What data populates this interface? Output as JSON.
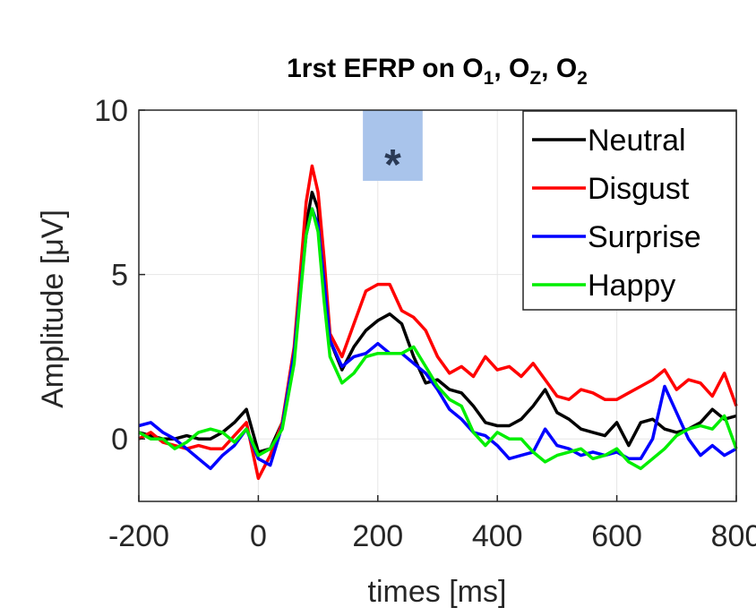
{
  "chart_data": {
    "type": "line",
    "title": [
      "1rst EFRP on O",
      "1",
      ", O",
      "Z",
      ", O",
      "2"
    ],
    "x_label": "times [ms]",
    "y_label": "Amplitude [μV]",
    "x": [
      -200,
      -180,
      -160,
      -140,
      -120,
      -100,
      -80,
      -60,
      -40,
      -20,
      0,
      20,
      40,
      60,
      70,
      80,
      90,
      100,
      110,
      120,
      140,
      160,
      180,
      200,
      220,
      240,
      260,
      280,
      300,
      320,
      340,
      360,
      380,
      400,
      420,
      440,
      460,
      480,
      500,
      520,
      540,
      560,
      580,
      600,
      620,
      640,
      660,
      680,
      700,
      720,
      740,
      760,
      780,
      800
    ],
    "series": [
      {
        "name": "Neutral",
        "color": "#000000",
        "values": [
          0.2,
          0.1,
          0,
          0,
          0.1,
          0,
          0,
          0.2,
          0.5,
          0.9,
          -0.4,
          -0.3,
          0.5,
          2.5,
          4.5,
          6.5,
          7.5,
          7,
          5,
          3,
          2.1,
          2.8,
          3.3,
          3.6,
          3.8,
          3.5,
          2.5,
          1.7,
          1.8,
          1.5,
          1.4,
          1.0,
          0.5,
          0.4,
          0.4,
          0.6,
          1.0,
          1.5,
          0.8,
          0.6,
          0.3,
          0.2,
          0.1,
          0.5,
          -0.2,
          0.5,
          0.6,
          0.3,
          0.2,
          0.3,
          0.5,
          0.9,
          0.6,
          0.7
        ]
      },
      {
        "name": "Disgust",
        "color": "#ff0000",
        "values": [
          0,
          0.2,
          -0.1,
          -0.2,
          -0.3,
          -0.2,
          -0.3,
          -0.3,
          0.1,
          0.5,
          -1.2,
          -0.5,
          0.5,
          2.8,
          5,
          7.2,
          8.3,
          7.5,
          5.5,
          3.2,
          2.5,
          3.5,
          4.5,
          4.7,
          4.7,
          3.9,
          3.7,
          3.3,
          2.5,
          2.0,
          2.2,
          1.9,
          2.5,
          2.1,
          2.2,
          1.9,
          2.3,
          1.8,
          1.3,
          1.2,
          1.5,
          1.4,
          1.2,
          1.2,
          1.4,
          1.6,
          1.8,
          2.1,
          1.5,
          1.8,
          1.7,
          1.3,
          2.0,
          1.0
        ]
      },
      {
        "name": "Surprise",
        "color": "#0000ff",
        "values": [
          0.4,
          0.5,
          0.2,
          0,
          -0.3,
          -0.6,
          -0.9,
          -0.5,
          -0.2,
          0.3,
          -0.6,
          -0.8,
          0.4,
          2.6,
          4.5,
          6.2,
          7.0,
          6.5,
          4.8,
          3,
          2.2,
          2.5,
          2.6,
          2.9,
          2.6,
          2.6,
          2.3,
          2.0,
          1.5,
          0.9,
          0.6,
          0.2,
          0.1,
          -0.2,
          -0.6,
          -0.5,
          -0.4,
          0.3,
          -0.2,
          -0.3,
          -0.5,
          -0.4,
          -0.5,
          -0.4,
          -0.6,
          -0.6,
          0,
          1.6,
          0.8,
          0.0,
          -0.5,
          -0.2,
          -0.5,
          -0.3
        ]
      },
      {
        "name": "Happy",
        "color": "#00ee00",
        "values": [
          0.2,
          0,
          0,
          -0.3,
          -0.1,
          0.2,
          0.3,
          0.2,
          -0.1,
          0.3,
          -0.5,
          -0.3,
          0.3,
          2.3,
          4.3,
          6.2,
          7.0,
          6.3,
          4.2,
          2.5,
          1.7,
          2.0,
          2.5,
          2.6,
          2.6,
          2.6,
          2.8,
          2.2,
          1.6,
          1.2,
          1.0,
          0.2,
          -0.2,
          0.2,
          0.0,
          0.0,
          -0.4,
          -0.7,
          -0.5,
          -0.4,
          -0.3,
          -0.6,
          -0.5,
          -0.3,
          -0.7,
          -0.9,
          -0.6,
          -0.3,
          0.1,
          0.3,
          0.4,
          0.3,
          0.7,
          -0.3
        ]
      }
    ],
    "xlim": [
      -200,
      800
    ],
    "ylim": [
      -1.9,
      10
    ],
    "xticks": [
      -200,
      0,
      200,
      400,
      600,
      800
    ],
    "yticks": [
      0,
      5,
      10
    ],
    "grid": true,
    "legend": "northeast",
    "highlight": {
      "x": [
        175,
        275
      ],
      "y": [
        7.85,
        10
      ],
      "label": "*",
      "color": "#a9c4eb"
    }
  }
}
